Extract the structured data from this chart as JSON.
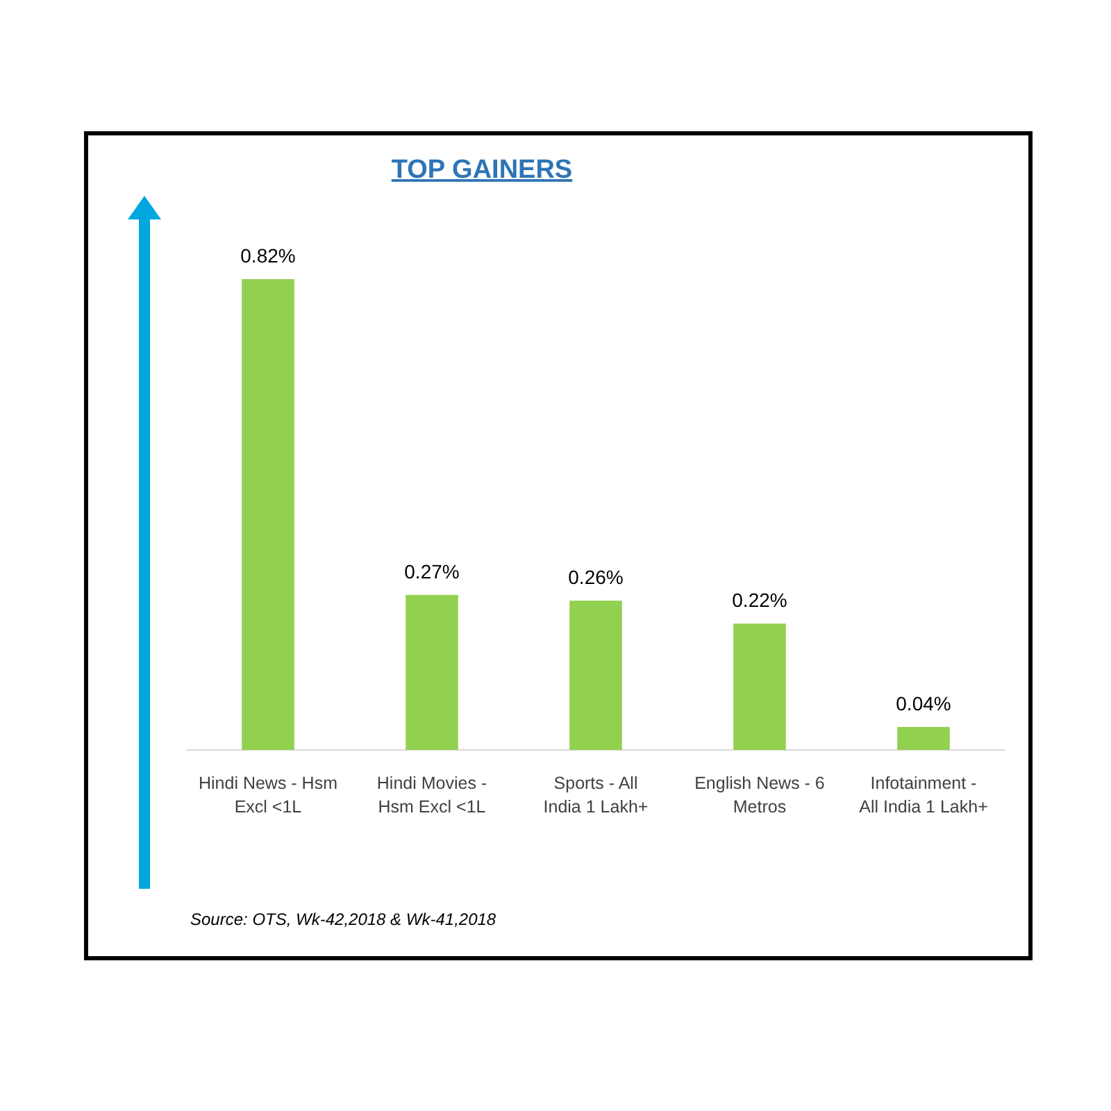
{
  "chart_data": {
    "type": "bar",
    "title": "TOP GAINERS",
    "categories": [
      "Hindi News - Hsm Excl <1L",
      "Hindi Movies - Hsm Excl <1L",
      "Sports - All India 1 Lakh+",
      "English News - 6 Metros",
      "Infotainment - All India 1 Lakh+"
    ],
    "values": [
      0.82,
      0.27,
      0.26,
      0.22,
      0.04
    ],
    "value_labels": [
      "0.82%",
      "0.27%",
      "0.26%",
      "0.22%",
      "0.04%"
    ],
    "color": "#92d050",
    "annotations": [
      "Source: OTS, Wk-42,2018 & Wk-41,2018"
    ]
  }
}
